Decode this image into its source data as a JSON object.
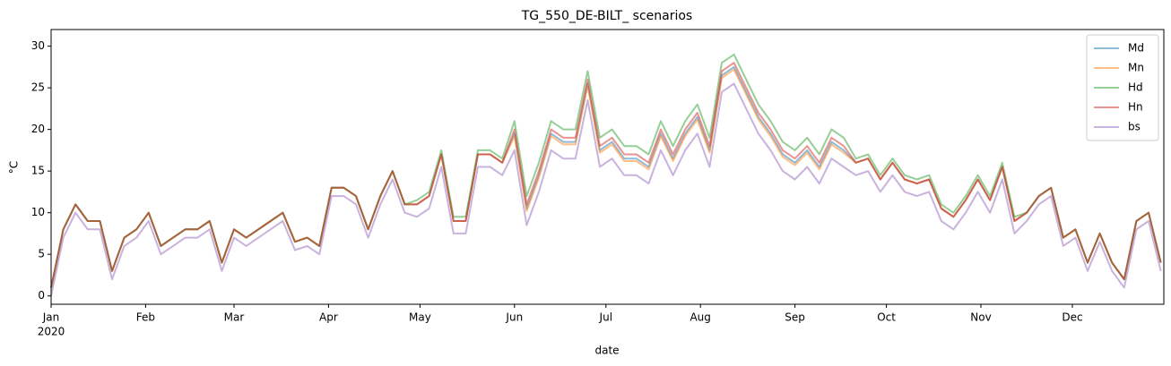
{
  "chart_data": {
    "type": "line",
    "title": "TG_550_DE-BILT_ scenarios",
    "xlabel": "date",
    "ylabel": "°C",
    "x_sublabel": "2020",
    "x": [
      0,
      4,
      8,
      12,
      16,
      20,
      24,
      28,
      32,
      36,
      40,
      44,
      48,
      52,
      56,
      60,
      64,
      68,
      72,
      76,
      80,
      84,
      88,
      92,
      96,
      100,
      104,
      108,
      112,
      116,
      120,
      124,
      128,
      132,
      136,
      140,
      144,
      148,
      152,
      156,
      160,
      164,
      168,
      172,
      176,
      180,
      184,
      188,
      192,
      196,
      200,
      204,
      208,
      212,
      216,
      220,
      224,
      228,
      232,
      236,
      240,
      244,
      248,
      252,
      256,
      260,
      264,
      268,
      272,
      276,
      280,
      284,
      288,
      292,
      296,
      300,
      304,
      308,
      312,
      316,
      320,
      324,
      328,
      332,
      336,
      340,
      344,
      348,
      352,
      356,
      360,
      364
    ],
    "series": [
      {
        "name": "Md",
        "color": "#1f77b4",
        "values": [
          1,
          8,
          11,
          9,
          9,
          3,
          7,
          8,
          10,
          6,
          7,
          8,
          8,
          9,
          4,
          8,
          7,
          8,
          9,
          10,
          6.5,
          7,
          6,
          13,
          13,
          12,
          8,
          12,
          15,
          11,
          11,
          12,
          17,
          9,
          9,
          17,
          17,
          16,
          19.5,
          10.5,
          14.5,
          19.5,
          18.5,
          18.5,
          25.5,
          17.5,
          18.5,
          16.5,
          16.5,
          15.5,
          19.5,
          16.5,
          19.5,
          21.5,
          17.5,
          26.5,
          27.5,
          24.5,
          21.5,
          19.5,
          17,
          16,
          17.5,
          15.5,
          18.5,
          17.5,
          16,
          16.5,
          14,
          16,
          14,
          13.5,
          14,
          10.5,
          9.5,
          11.5,
          14,
          11.5,
          15.5,
          9,
          10,
          12,
          13,
          7,
          8,
          4,
          7.5,
          4,
          2,
          9,
          10,
          4
        ]
      },
      {
        "name": "Mn",
        "color": "#ff7f0e",
        "values": [
          1,
          8,
          11,
          9,
          9,
          3,
          7,
          8,
          10,
          6,
          7,
          8,
          8,
          9,
          4,
          8,
          7,
          8,
          9,
          10,
          6.5,
          7,
          6,
          13,
          13,
          12,
          8,
          12,
          15,
          11,
          11,
          12,
          17,
          9,
          9,
          17,
          17,
          16,
          19.2,
          10.2,
          14.2,
          19.2,
          18.2,
          18.2,
          25.2,
          17.2,
          18.2,
          16.2,
          16.2,
          15.2,
          19.2,
          16.2,
          19.2,
          21.2,
          17.2,
          26.2,
          27.2,
          24.2,
          21.2,
          19.2,
          16.7,
          15.7,
          17.2,
          15.2,
          18.2,
          17.2,
          16,
          16.5,
          14,
          16,
          14,
          13.5,
          14,
          10.5,
          9.5,
          11.5,
          14,
          11.5,
          15.5,
          9,
          10,
          12,
          13,
          7,
          8,
          4,
          7.5,
          4,
          2,
          9,
          10,
          4
        ]
      },
      {
        "name": "Hd",
        "color": "#2ca02c",
        "values": [
          1,
          8,
          11,
          9,
          9,
          3,
          7,
          8,
          10,
          6,
          7,
          8,
          8,
          9,
          4,
          8,
          7,
          8,
          9,
          10,
          6.5,
          7,
          6,
          13,
          13,
          12,
          8,
          12,
          15,
          11,
          11.5,
          12.5,
          17.5,
          9.5,
          9.5,
          17.5,
          17.5,
          16.5,
          21,
          12,
          16,
          21,
          20,
          20,
          27,
          19,
          20,
          18,
          18,
          17,
          21,
          18,
          21,
          23,
          19,
          28,
          29,
          26,
          23,
          21,
          18.5,
          17.5,
          19,
          17,
          20,
          19,
          16.5,
          17,
          14.5,
          16.5,
          14.5,
          14,
          14.5,
          11,
          10,
          12,
          14.5,
          12,
          16,
          9.5,
          10,
          12,
          13,
          7,
          8,
          4,
          7.5,
          4,
          2,
          9,
          10,
          4
        ]
      },
      {
        "name": "Hn",
        "color": "#d62728",
        "values": [
          1,
          8,
          11,
          9,
          9,
          3,
          7,
          8,
          10,
          6,
          7,
          8,
          8,
          9,
          4,
          8,
          7,
          8,
          9,
          10,
          6.5,
          7,
          6,
          13,
          13,
          12,
          8,
          12,
          15,
          11,
          11,
          12,
          17,
          9,
          9,
          17,
          17,
          16,
          20,
          11,
          15,
          20,
          19,
          19,
          26,
          18,
          19,
          17,
          17,
          16,
          20,
          17,
          20,
          22,
          18,
          27,
          28,
          25,
          22,
          20,
          17.5,
          16.5,
          18,
          16,
          19,
          18,
          16,
          16.5,
          14,
          16,
          14,
          13.5,
          14,
          10.5,
          9.5,
          11.5,
          14,
          11.5,
          15.5,
          9,
          10,
          12,
          13,
          7,
          8,
          4,
          7.5,
          4,
          2,
          9,
          10,
          4
        ]
      },
      {
        "name": "bs",
        "color": "#9467bd",
        "values": [
          0,
          7,
          10,
          8,
          8,
          2,
          6,
          7,
          9,
          5,
          6,
          7,
          7,
          8,
          3,
          7,
          6,
          7,
          8,
          9,
          5.5,
          6,
          5,
          12,
          12,
          11,
          7,
          11,
          14,
          10,
          9.5,
          10.5,
          15.5,
          7.5,
          7.5,
          15.5,
          15.5,
          14.5,
          17.5,
          8.5,
          12.5,
          17.5,
          16.5,
          16.5,
          23.5,
          15.5,
          16.5,
          14.5,
          14.5,
          13.5,
          17.5,
          14.5,
          17.5,
          19.5,
          15.5,
          24.5,
          25.5,
          22.5,
          19.5,
          17.5,
          15,
          14,
          15.5,
          13.5,
          16.5,
          15.5,
          14.5,
          15,
          12.5,
          14.5,
          12.5,
          12,
          12.5,
          9,
          8,
          10,
          12.5,
          10,
          14,
          7.5,
          9,
          11,
          12,
          6,
          7,
          3,
          6.5,
          3,
          1,
          8,
          9,
          3
        ]
      }
    ],
    "xlim": [
      0,
      365
    ],
    "xticks": [
      {
        "value": 0,
        "label": "Jan"
      },
      {
        "value": 31,
        "label": "Feb"
      },
      {
        "value": 60,
        "label": "Mar"
      },
      {
        "value": 91,
        "label": "Apr"
      },
      {
        "value": 121,
        "label": "May"
      },
      {
        "value": 152,
        "label": "Jun"
      },
      {
        "value": 182,
        "label": "Jul"
      },
      {
        "value": 213,
        "label": "Aug"
      },
      {
        "value": 244,
        "label": "Sep"
      },
      {
        "value": 274,
        "label": "Oct"
      },
      {
        "value": 305,
        "label": "Nov"
      },
      {
        "value": 335,
        "label": "Dec"
      }
    ],
    "ylim": [
      -1,
      32
    ],
    "yticks": [
      0,
      5,
      10,
      15,
      20,
      25,
      30
    ],
    "line_opacity": 0.5,
    "legend": "upper right",
    "grid": false
  }
}
